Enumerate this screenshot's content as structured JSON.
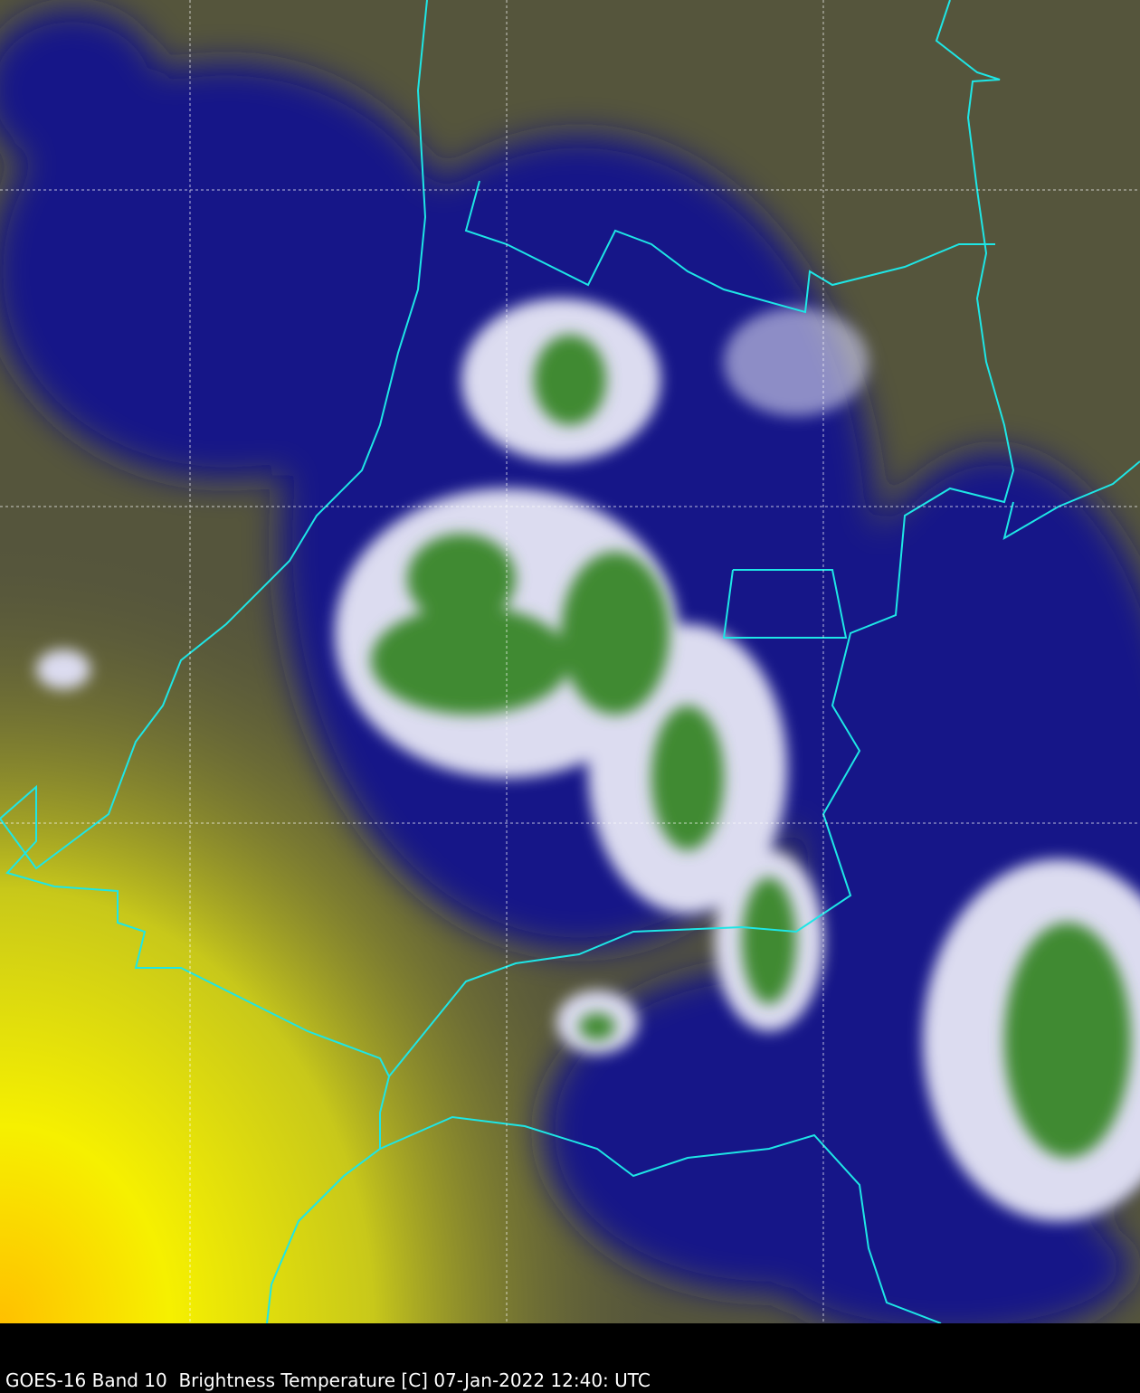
{
  "caption": "GOES-16 Band 10  Brightness Temperature [C] 07-Jan-2022 12:40: UTC",
  "colors": {
    "background_olive": "#55553c",
    "warm_yellow": "#f2f200",
    "hot_orange": "#ffc800",
    "cold_navy": "#101080",
    "cloud_white": "#e8e8f4",
    "coldest_green": "#3c8a2c",
    "border_cyan": "#1ee6e6",
    "grid_white": "#ffffff"
  }
}
